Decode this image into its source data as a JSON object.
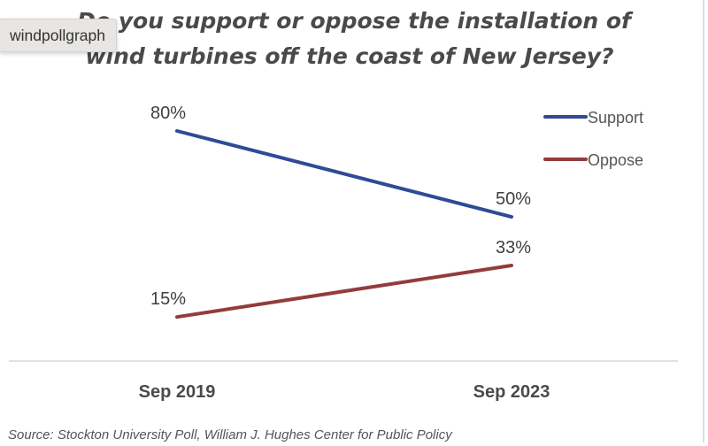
{
  "tooltip": "windpollgraph",
  "chart_data": {
    "type": "line",
    "title": "Do you support or oppose the installation of wind turbines off the coast of New Jersey?",
    "title_lines": [
      "Do you support or oppose the installation of",
      "wind turbines off the coast of New Jersey?"
    ],
    "categories": [
      "Sep 2019",
      "Sep 2023"
    ],
    "series": [
      {
        "name": "Support",
        "values": [
          80,
          50
        ],
        "labels": [
          "80%",
          "50%"
        ],
        "color": "#2f4b96"
      },
      {
        "name": "Oppose",
        "values": [
          15,
          33
        ],
        "labels": [
          "15%",
          "33%"
        ],
        "color": "#943b3b"
      }
    ],
    "ylim": [
      0,
      80
    ],
    "xlabel": "",
    "ylabel": "",
    "grid": false,
    "legend": "top-right",
    "source": "Source: Stockton University Poll, William J. Hughes Center for Public Policy"
  }
}
